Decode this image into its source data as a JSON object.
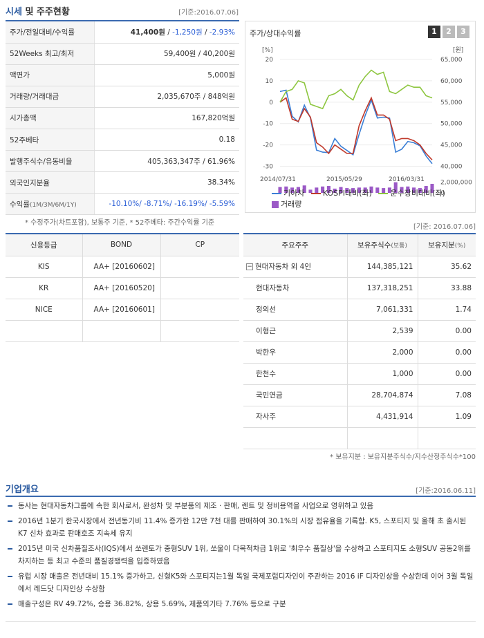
{
  "market": {
    "title_main": "시세",
    "title_rest": " 및 주주현황",
    "base_date": "[기준:2016.07.06]",
    "rows": [
      {
        "label": "주가/전일대비/수익률",
        "price": "41,400원",
        "sep1": " / ",
        "change": "-1,250원",
        "sep2": " / ",
        "rate": "-2.93%"
      },
      {
        "label": "52Weeks 최고/최저",
        "value": "59,400원 / 40,200원"
      },
      {
        "label": "액면가",
        "value": "5,000원"
      },
      {
        "label": "거래량/거래대금",
        "value": "2,035,670주 / 848억원"
      },
      {
        "label": "시가총액",
        "value": "167,820억원"
      },
      {
        "label": "52주베타",
        "value": "0.18"
      },
      {
        "label": "발행주식수/유동비율",
        "value": "405,363,347주 / 61.96%"
      },
      {
        "label": "외국인지분율",
        "value": "38.34%"
      },
      {
        "label": "수익률",
        "sub": "(1M/3M/6M/1Y)",
        "value": "-10.10%/ -8.71%/ -16.19%/ -5.59%"
      }
    ],
    "note": "* 수정주가(차트포함), 보통주 기준, * 52주베타: 주간수익률 기준"
  },
  "chart": {
    "title": "주가/상대수익률",
    "pages": [
      "1",
      "2",
      "3"
    ],
    "active_page": "1",
    "left_unit": "[%]",
    "right_unit": "[원]",
    "legend": {
      "kia": "기아차",
      "kospi": "KOSPI대비(좌)",
      "trans": "운수장비대비(좌)",
      "vol": "거래량"
    }
  },
  "chart_data": {
    "type": "line",
    "x_labels": [
      "2014/07/31",
      "2015/05/29",
      "2016/03/31"
    ],
    "left_axis": {
      "ticks": [
        "20",
        "10",
        "0",
        "-10",
        "-20",
        "-30"
      ],
      "ylim": [
        -35,
        20
      ]
    },
    "right_axis": {
      "ticks": [
        "65,000",
        "60,000",
        "55,000",
        "50,000",
        "45,000",
        "40,000"
      ],
      "ylim": [
        37500,
        65000
      ]
    },
    "volume_axis": {
      "ticks": [
        "2,000,000",
        "0"
      ],
      "ylim": [
        0,
        3000000
      ]
    },
    "series": [
      {
        "name": "기아차",
        "color": "#3b7fd6",
        "axis": "right",
        "values": [
          57500,
          57800,
          51700,
          50400,
          54300,
          51300,
          43800,
          43300,
          43200,
          46500,
          44700,
          43700,
          42700,
          47500,
          51900,
          55500,
          51300,
          51500,
          51300,
          43300,
          44000,
          45800,
          45500,
          44800,
          42400,
          40600
        ]
      },
      {
        "name": "KOSPI대비(좌)",
        "color": "#c0392b",
        "axis": "left",
        "values": [
          0,
          2,
          -8,
          -9,
          -3,
          -7,
          -19,
          -21,
          -24,
          -20,
          -22,
          -24,
          -24,
          -11,
          -4,
          2,
          -6,
          -6,
          -8,
          -18,
          -17,
          -17,
          -18,
          -20,
          -24,
          -27
        ]
      },
      {
        "name": "운수장비대비(좌)",
        "color": "#8dc63f",
        "axis": "left",
        "values": [
          0,
          5,
          6,
          10,
          9,
          -1,
          -2,
          -3,
          3,
          4,
          6,
          3,
          1,
          8,
          12,
          15,
          13,
          14,
          5,
          4,
          6,
          8,
          7,
          7,
          3,
          2
        ]
      }
    ],
    "volume": {
      "name": "거래량",
      "color": "#9b59c6",
      "values": [
        1100000,
        1200000,
        1000000,
        1100000,
        1400000,
        600000,
        1000000,
        1200000,
        1300000,
        800000,
        1100000,
        900000,
        900000,
        1000000,
        1000000,
        1200000,
        1000000,
        900000,
        1000000,
        2000000,
        1100000,
        1200000,
        1000000,
        900000,
        1300000,
        1700000
      ]
    }
  },
  "credit": {
    "headers": [
      "신용등급",
      "BOND",
      "CP"
    ],
    "rows": [
      {
        "agency": "KIS",
        "bond": "AA+ [20160602]",
        "cp": ""
      },
      {
        "agency": "KR",
        "bond": "AA+ [20160520]",
        "cp": ""
      },
      {
        "agency": "NICE",
        "bond": "AA+ [20160601]",
        "cp": ""
      }
    ]
  },
  "holders": {
    "base_date": "[기준: 2016.07.06]",
    "headers": {
      "name": "주요주주",
      "shares": "보유주식수",
      "shares_unit": "(보통)",
      "ratio": "보유지분",
      "ratio_unit": "(%)"
    },
    "toggle": "−",
    "rows": [
      {
        "name": "현대자동차 외 4인",
        "shares": "144,385,121",
        "ratio": "35.62"
      },
      {
        "name": "현대자동차",
        "shares": "137,318,251",
        "ratio": "33.88"
      },
      {
        "name": "정의선",
        "shares": "7,061,331",
        "ratio": "1.74"
      },
      {
        "name": "이형근",
        "shares": "2,539",
        "ratio": "0.00"
      },
      {
        "name": "박한우",
        "shares": "2,000",
        "ratio": "0.00"
      },
      {
        "name": "한천수",
        "shares": "1,000",
        "ratio": "0.00"
      },
      {
        "name": "국민연금",
        "shares": "28,704,874",
        "ratio": "7.08"
      },
      {
        "name": "자사주",
        "shares": "4,431,914",
        "ratio": "1.09"
      }
    ],
    "note": "* 보유지분 : 보유지분주식수/지수산정주식수*100"
  },
  "overview": {
    "title": "기업개요",
    "base_date": "[기준:2016.06.11]",
    "items": [
      "동사는 현대자동차그룹에 속한 회사로서, 완성차 및 부분품의 제조 · 판매, 렌트 및 정비용역을 사업으로 영위하고 있음",
      "2016년 1분기 한국시장에서 전년동기비 11.4% 증가한 12만 7천 대를 판매하여 30.1%의 시장 점유율을 기록함. K5, 스포티지 및 올해 초 출시된 K7 신차 효과로 판매호조 지속세 유지",
      "2015년 미국 신차품질조사(IQS)에서 쏘렌토가 중형SUV 1위, 쏘울이 다목적차급 1위로 '최우수 품질상'을 수상하고 스포티지도 소형SUV 공동2위를 차지하는 등 최고 수준의 품질경쟁력을 입증하였음",
      "유럽 시장 매출은 전년대비 15.1% 증가하고, 신형K5와 스포티지는1월 독일 국제포럼디자인이 주관하는 2016 iF 디자인상을 수상한데 이어 3월 독일 에서 레드닷 디자인상 수상함",
      "매출구성은 RV 49.72%, 승용 36.82%, 상용 5.69%, 제품외기타 7.76% 등으로 구분"
    ]
  }
}
